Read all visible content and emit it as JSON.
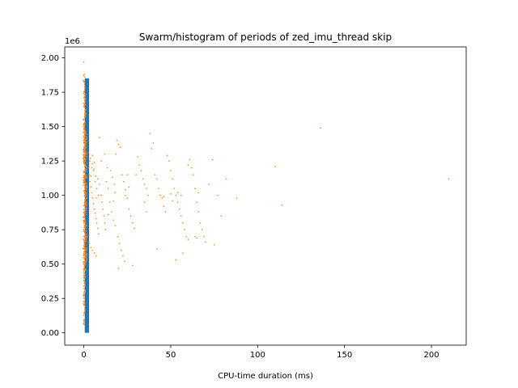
{
  "chart_data": {
    "type": "scatter",
    "title": "Swarm/histogram of periods of zed_imu_thread skip",
    "xlabel": "CPU-time duration (ms)",
    "ylabel": "",
    "y_offset_text": "1e6",
    "xlim": [
      -11,
      220
    ],
    "ylim": [
      -90000,
      2080000
    ],
    "xticks": [
      0,
      50,
      100,
      150,
      200
    ],
    "xtick_labels": [
      "0",
      "50",
      "100",
      "150",
      "200"
    ],
    "yticks": [
      0,
      250000,
      500000,
      750000,
      1000000,
      1250000,
      1500000,
      1750000,
      2000000
    ],
    "ytick_labels": [
      "0.00",
      "0.25",
      "0.50",
      "0.75",
      "1.00",
      "1.25",
      "1.50",
      "1.75",
      "2.00"
    ],
    "grid": false,
    "colors": {
      "histogram": "#1f77b4",
      "points": "#ff7f0e"
    },
    "histogram_bars": [
      {
        "x_start": 0.5,
        "x_end": 3.0,
        "count": 1850000
      }
    ],
    "points_dense": [
      {
        "x": 0.0,
        "y_min": 50000,
        "y_max": 1880000
      },
      {
        "x": 0.4,
        "y_min": 120000,
        "y_max": 1820000
      },
      {
        "x": 0.8,
        "y_min": 300000,
        "y_max": 1750000
      },
      {
        "x": 1.3,
        "y_min": 500000,
        "y_max": 1450000
      }
    ],
    "points": [
      [
        0,
        1970000
      ],
      [
        0.3,
        1880000
      ],
      [
        0.5,
        1860000
      ],
      [
        0.2,
        1650000
      ],
      [
        0.1,
        200000
      ],
      [
        0.4,
        150000
      ],
      [
        0.2,
        60000
      ],
      [
        1.0,
        1300000
      ],
      [
        2.0,
        1280000
      ],
      [
        2.5,
        1200000
      ],
      [
        3.0,
        1150000
      ],
      [
        3.5,
        1100000
      ],
      [
        4.0,
        1060000
      ],
      [
        4.5,
        1020000
      ],
      [
        5.0,
        980000
      ],
      [
        5.5,
        940000
      ],
      [
        6.0,
        900000
      ],
      [
        6.5,
        870000
      ],
      [
        7.0,
        830000
      ],
      [
        7.5,
        800000
      ],
      [
        8.0,
        760000
      ],
      [
        8.5,
        720000
      ],
      [
        9.0,
        1420000
      ],
      [
        2.0,
        700000
      ],
      [
        3.0,
        650000
      ],
      [
        4.0,
        620000
      ],
      [
        5.0,
        600000
      ],
      [
        6.0,
        580000
      ],
      [
        7.0,
        560000
      ],
      [
        3.5,
        1250000
      ],
      [
        4.5,
        1200000
      ],
      [
        5.5,
        1180000
      ],
      [
        6.5,
        1100000
      ],
      [
        7.5,
        1050000
      ],
      [
        8.5,
        1000000
      ],
      [
        2.5,
        1310000
      ],
      [
        3.8,
        1270000
      ],
      [
        4.8,
        1230000
      ],
      [
        5.8,
        1190000
      ],
      [
        6.8,
        1140000
      ],
      [
        10.0,
        1000000
      ],
      [
        10.5,
        950000
      ],
      [
        11.0,
        900000
      ],
      [
        11.5,
        850000
      ],
      [
        12.0,
        800000
      ],
      [
        12.5,
        750000
      ],
      [
        13.0,
        1100000
      ],
      [
        14.0,
        1050000
      ],
      [
        15.0,
        950000
      ],
      [
        16.0,
        880000
      ],
      [
        17.0,
        820000
      ],
      [
        18.0,
        780000
      ],
      [
        19.0,
        1400000
      ],
      [
        20.0,
        1370000
      ],
      [
        21.0,
        1350000
      ],
      [
        18.5,
        1300000
      ],
      [
        22.0,
        1150000
      ],
      [
        23.0,
        1100000
      ],
      [
        24.0,
        1000000
      ],
      [
        25.0,
        980000
      ],
      [
        26.0,
        900000
      ],
      [
        27.0,
        850000
      ],
      [
        28.0,
        800000
      ],
      [
        29.0,
        760000
      ],
      [
        19.5,
        700000
      ],
      [
        20.5,
        650000
      ],
      [
        21.5,
        600000
      ],
      [
        22.5,
        560000
      ],
      [
        23.5,
        520000
      ],
      [
        20.0,
        470000
      ],
      [
        28.0,
        490000
      ],
      [
        10.0,
        1250000
      ],
      [
        12.0,
        1300000
      ],
      [
        13.5,
        1200000
      ],
      [
        15.5,
        1180000
      ],
      [
        16.5,
        1130000
      ],
      [
        17.5,
        1080000
      ],
      [
        18.0,
        1020000
      ],
      [
        31.0,
        1280000
      ],
      [
        32.0,
        1220000
      ],
      [
        33.0,
        1180000
      ],
      [
        34.0,
        1120000
      ],
      [
        35.0,
        1080000
      ],
      [
        36.0,
        1050000
      ],
      [
        37.0,
        1000000
      ],
      [
        38.0,
        1450000
      ],
      [
        39.0,
        1340000
      ],
      [
        40.0,
        1380000
      ],
      [
        41.0,
        1150000
      ],
      [
        35.0,
        950000
      ],
      [
        36.0,
        880000
      ],
      [
        42.0,
        1120000
      ],
      [
        43.0,
        1050000
      ],
      [
        44.0,
        1000000
      ],
      [
        45.0,
        980000
      ],
      [
        46.0,
        920000
      ],
      [
        47.0,
        880000
      ],
      [
        48.0,
        1290000
      ],
      [
        49.0,
        1250000
      ],
      [
        50.0,
        1180000
      ],
      [
        51.0,
        1120000
      ],
      [
        52.0,
        1050000
      ],
      [
        53.0,
        1000000
      ],
      [
        54.0,
        950000
      ],
      [
        55.0,
        900000
      ],
      [
        56.0,
        850000
      ],
      [
        57.0,
        800000
      ],
      [
        58.0,
        750000
      ],
      [
        59.0,
        700000
      ],
      [
        60.0,
        680000
      ],
      [
        42.0,
        610000
      ],
      [
        53.0,
        530000
      ],
      [
        57.0,
        580000
      ],
      [
        61.0,
        1260000
      ],
      [
        62.0,
        1200000
      ],
      [
        63.0,
        1150000
      ],
      [
        64.0,
        1050000
      ],
      [
        65.0,
        950000
      ],
      [
        66.0,
        880000
      ],
      [
        67.0,
        800000
      ],
      [
        68.0,
        750000
      ],
      [
        69.0,
        700000
      ],
      [
        70.0,
        660000
      ],
      [
        72.0,
        1080000
      ],
      [
        74.0,
        1260000
      ],
      [
        75.0,
        640000
      ],
      [
        77.0,
        1000000
      ],
      [
        79.0,
        850000
      ],
      [
        82.0,
        1120000
      ],
      [
        88.0,
        980000
      ],
      [
        110.0,
        1210000
      ],
      [
        114.0,
        930000
      ],
      [
        136.0,
        1490000
      ],
      [
        210.0,
        1120000
      ],
      [
        56.0,
        1000000
      ],
      [
        54.0,
        1020000
      ],
      [
        51.0,
        960000
      ],
      [
        50.0,
        1010000
      ],
      [
        46.0,
        990000
      ],
      [
        66.0,
        1020000
      ],
      [
        64.0,
        700000
      ],
      [
        65.0,
        690000
      ],
      [
        60.0,
        1220000
      ],
      [
        26.0,
        1060000
      ],
      [
        30.0,
        1150000
      ],
      [
        24.0,
        1040000
      ],
      [
        25.0,
        1150000
      ],
      [
        17.0,
        960000
      ],
      [
        14.0,
        860000
      ],
      [
        8.0,
        1120000
      ],
      [
        9.0,
        1080000
      ],
      [
        7.0,
        980000
      ],
      [
        6.0,
        1240000
      ],
      [
        5.0,
        1290000
      ],
      [
        4.0,
        1140000
      ]
    ]
  }
}
